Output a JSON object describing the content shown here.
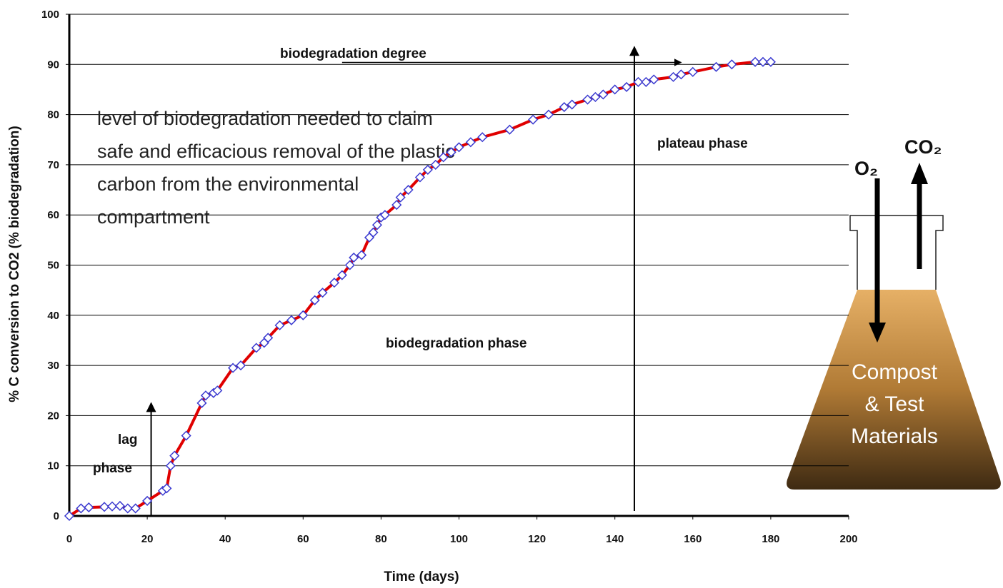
{
  "chart_data": {
    "type": "line",
    "x_label": "Time (days)",
    "y_label": "% C conversion to CO2 (% biodegradation)",
    "xlim": [
      0,
      200
    ],
    "xticks": [
      0,
      20,
      40,
      60,
      80,
      100,
      120,
      140,
      160,
      180,
      200
    ],
    "ylim": [
      0,
      100
    ],
    "yticks": [
      0,
      10,
      20,
      30,
      40,
      50,
      60,
      70,
      80,
      90,
      100
    ],
    "grid": true,
    "series": [
      {
        "color": "#e00000",
        "marker_color": "#3a3ad0",
        "x": [
          0,
          3,
          5,
          9,
          11,
          13,
          15,
          17,
          20,
          24,
          25,
          26,
          27,
          30,
          34,
          35,
          37,
          38,
          42,
          44,
          48,
          50,
          51,
          54,
          57,
          60,
          63,
          65,
          68,
          70,
          72,
          73,
          75,
          77,
          78,
          79,
          80,
          81,
          84,
          85,
          87,
          90,
          92,
          94,
          96,
          98,
          100,
          103,
          106,
          113,
          119,
          123,
          127,
          129,
          133,
          135,
          137,
          140,
          143,
          146,
          148,
          150,
          155,
          157,
          160,
          166,
          170,
          176,
          178,
          180
        ],
        "values": [
          0,
          1.5,
          1.7,
          1.8,
          1.9,
          2,
          1.5,
          1.5,
          3,
          5,
          5.5,
          10,
          12,
          16,
          22.5,
          24,
          24.5,
          25,
          29.5,
          30,
          33.5,
          34.5,
          35.5,
          38,
          39,
          40,
          43,
          44.5,
          46.5,
          48,
          50,
          51.5,
          52,
          55.5,
          56.5,
          58,
          59.5,
          60,
          62,
          63.5,
          65,
          67.5,
          69,
          70,
          71.5,
          72.5,
          73.5,
          74.5,
          75.5,
          77,
          79,
          80,
          81.5,
          82,
          83,
          83.5,
          84,
          85,
          85.5,
          86.5,
          86.5,
          87,
          87.5,
          88,
          88.5,
          89.5,
          90,
          90.5,
          90.5,
          90.5
        ]
      }
    ],
    "annotations": {
      "biodegradation_degree": "biodegradation degree",
      "claim": [
        "level of biodegradation needed to  claim",
        "safe and efficacious removal of the plastic",
        "carbon from the environmental",
        "compartment"
      ],
      "plateau": "plateau phase",
      "biodegradation_phase": "biodegradation phase",
      "lag": [
        "lag",
        "phase"
      ],
      "o2": "O₂",
      "co2": "CO₂",
      "flask": [
        "Compost",
        "& Test",
        "Materials"
      ]
    }
  }
}
